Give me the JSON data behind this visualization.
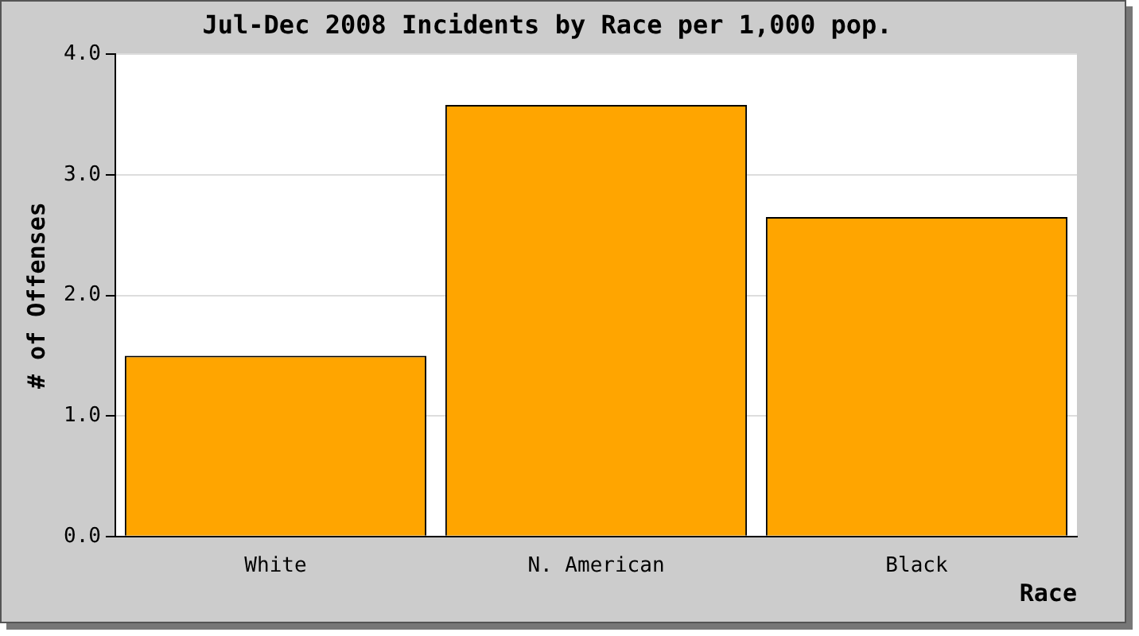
{
  "chart_data": {
    "type": "bar",
    "title": "Jul-Dec 2008 Incidents by Race per 1,000 pop.",
    "xlabel": "Race",
    "ylabel": "# of Offenses",
    "categories": [
      "White",
      "N. American",
      "Black"
    ],
    "values": [
      1.5,
      3.58,
      2.65
    ],
    "color": "#ffa500",
    "ylim": [
      0,
      4
    ],
    "yticks": [
      {
        "value": 0,
        "label": "0.0"
      },
      {
        "value": 1,
        "label": "1.0"
      },
      {
        "value": 2,
        "label": "2.0"
      },
      {
        "value": 3,
        "label": "3.0"
      },
      {
        "value": 4,
        "label": "4.0"
      }
    ],
    "grid": "y",
    "legend": false
  }
}
